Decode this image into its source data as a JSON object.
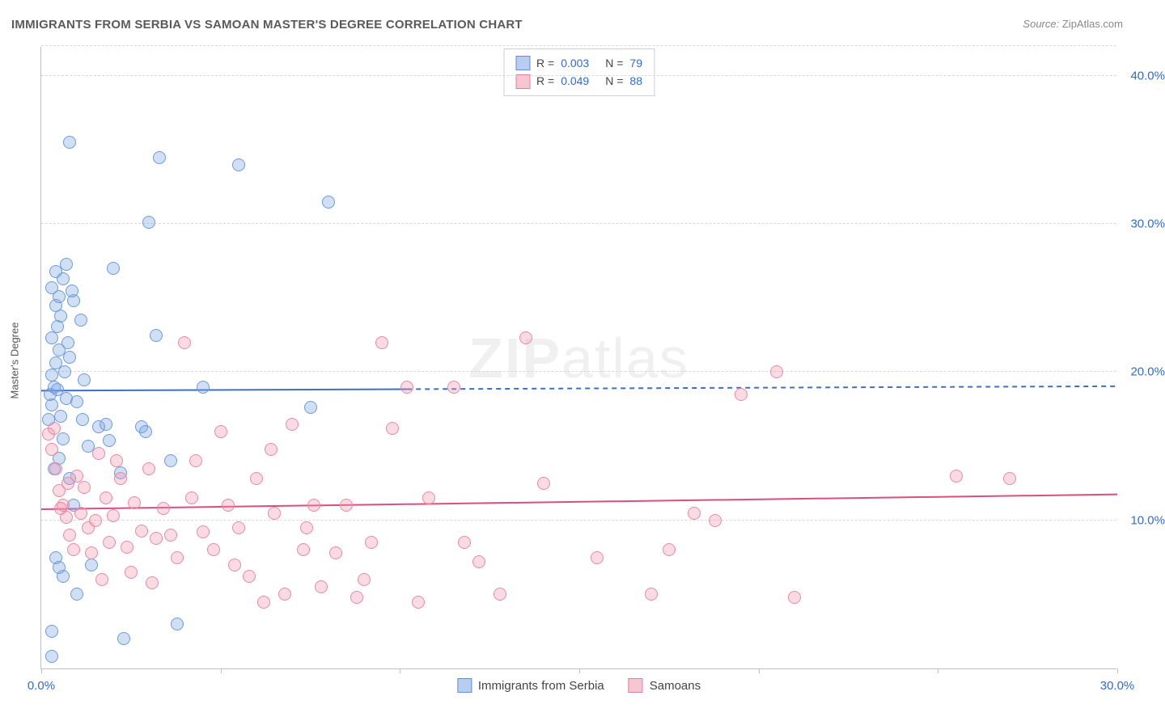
{
  "title": "IMMIGRANTS FROM SERBIA VS SAMOAN MASTER'S DEGREE CORRELATION CHART",
  "source": {
    "prefix": "Source:",
    "name": "ZipAtlas.com"
  },
  "yaxis_label": "Master's Degree",
  "watermark": {
    "bold": "ZIP",
    "light": "atlas"
  },
  "chart": {
    "type": "scatter",
    "background_color": "#ffffff",
    "grid_color": "#d9d9d9",
    "axis_color": "#bfbfbf",
    "tick_color": "#2f6bd6",
    "xlim": [
      0,
      30
    ],
    "ylim": [
      0,
      42
    ],
    "y_gridlines": [
      10,
      20,
      30,
      40,
      42
    ],
    "y_tick_labels": [
      "10.0%",
      "20.0%",
      "30.0%",
      "40.0%",
      ""
    ],
    "x_ticks": [
      0,
      5,
      10,
      15,
      20,
      25,
      30
    ],
    "x_tick_labels": [
      "0.0%",
      "",
      "",
      "",
      "",
      "",
      "30.0%"
    ],
    "marker_radius": 8,
    "marker_border_width": 1.2,
    "series": [
      {
        "name": "Immigrants from Serbia",
        "fill": "rgba(120,163,224,0.35)",
        "stroke": "#6b9be0",
        "swatch_fill": "#b8cef0",
        "swatch_stroke": "#5b8fd8",
        "R": "0.003",
        "N": "79",
        "trend": {
          "y_start": 18.8,
          "y_end": 19.1,
          "solid_until_x": 10.2,
          "color": "#3d6fc2",
          "width": 2
        },
        "points": [
          [
            0.2,
            16.8
          ],
          [
            0.3,
            17.8
          ],
          [
            0.25,
            18.5
          ],
          [
            0.35,
            19.0
          ],
          [
            0.3,
            19.8
          ],
          [
            0.4,
            20.6
          ],
          [
            0.5,
            21.5
          ],
          [
            0.3,
            22.3
          ],
          [
            0.45,
            23.1
          ],
          [
            0.55,
            23.8
          ],
          [
            0.4,
            24.5
          ],
          [
            0.5,
            25.1
          ],
          [
            0.3,
            25.7
          ],
          [
            0.6,
            26.3
          ],
          [
            0.4,
            26.8
          ],
          [
            0.7,
            27.3
          ],
          [
            0.5,
            14.2
          ],
          [
            0.6,
            15.5
          ],
          [
            0.8,
            12.8
          ],
          [
            0.9,
            11.0
          ],
          [
            0.4,
            7.5
          ],
          [
            0.6,
            6.2
          ],
          [
            0.3,
            2.5
          ],
          [
            1.0,
            5.0
          ],
          [
            1.3,
            15.0
          ],
          [
            1.4,
            7.0
          ],
          [
            1.6,
            16.3
          ],
          [
            1.8,
            16.5
          ],
          [
            1.9,
            15.4
          ],
          [
            2.0,
            27.0
          ],
          [
            2.2,
            13.2
          ],
          [
            2.3,
            2.0
          ],
          [
            2.8,
            16.3
          ],
          [
            2.9,
            16.0
          ],
          [
            3.0,
            30.1
          ],
          [
            3.2,
            22.5
          ],
          [
            3.3,
            34.5
          ],
          [
            0.8,
            35.5
          ],
          [
            3.6,
            14.0
          ],
          [
            3.8,
            3.0
          ],
          [
            4.5,
            19.0
          ],
          [
            5.5,
            34.0
          ],
          [
            7.5,
            17.6
          ],
          [
            8.0,
            31.5
          ],
          [
            0.3,
            0.8
          ],
          [
            0.7,
            18.2
          ],
          [
            0.8,
            21.0
          ],
          [
            1.1,
            23.5
          ],
          [
            1.2,
            19.5
          ],
          [
            0.9,
            24.8
          ],
          [
            0.35,
            13.5
          ],
          [
            0.55,
            17.0
          ],
          [
            0.65,
            20.0
          ],
          [
            0.75,
            22.0
          ],
          [
            0.85,
            25.5
          ],
          [
            1.0,
            18.0
          ],
          [
            1.15,
            16.8
          ],
          [
            0.45,
            18.8
          ],
          [
            0.5,
            6.8
          ]
        ]
      },
      {
        "name": "Samoans",
        "fill": "rgba(240,150,175,0.35)",
        "stroke": "#e88aa5",
        "swatch_fill": "#f6c6d3",
        "swatch_stroke": "#e37d9c",
        "R": "0.049",
        "N": "88",
        "trend": {
          "y_start": 10.8,
          "y_end": 11.8,
          "solid_until_x": 30,
          "color": "#d94f7e",
          "width": 2
        },
        "points": [
          [
            0.2,
            15.8
          ],
          [
            0.3,
            14.8
          ],
          [
            0.4,
            13.5
          ],
          [
            0.5,
            12.0
          ],
          [
            0.6,
            11.0
          ],
          [
            0.7,
            10.2
          ],
          [
            0.8,
            9.0
          ],
          [
            0.9,
            8.0
          ],
          [
            1.0,
            13.0
          ],
          [
            1.1,
            10.5
          ],
          [
            1.2,
            12.2
          ],
          [
            1.3,
            9.5
          ],
          [
            1.5,
            10.0
          ],
          [
            1.6,
            14.5
          ],
          [
            1.8,
            11.5
          ],
          [
            1.9,
            8.5
          ],
          [
            2.0,
            10.3
          ],
          [
            2.2,
            12.8
          ],
          [
            2.4,
            8.2
          ],
          [
            2.6,
            11.2
          ],
          [
            2.8,
            9.3
          ],
          [
            3.0,
            13.5
          ],
          [
            3.2,
            8.8
          ],
          [
            3.4,
            10.8
          ],
          [
            3.6,
            9.0
          ],
          [
            3.8,
            7.5
          ],
          [
            4.0,
            22.0
          ],
          [
            4.2,
            11.5
          ],
          [
            4.5,
            9.2
          ],
          [
            4.8,
            8.0
          ],
          [
            5.0,
            16.0
          ],
          [
            5.2,
            11.0
          ],
          [
            5.5,
            9.5
          ],
          [
            5.8,
            6.2
          ],
          [
            6.0,
            12.8
          ],
          [
            6.2,
            4.5
          ],
          [
            6.5,
            10.5
          ],
          [
            6.8,
            5.0
          ],
          [
            7.0,
            16.5
          ],
          [
            7.3,
            8.0
          ],
          [
            7.6,
            11.0
          ],
          [
            7.8,
            5.5
          ],
          [
            8.2,
            7.8
          ],
          [
            8.5,
            11.0
          ],
          [
            8.8,
            4.8
          ],
          [
            9.2,
            8.5
          ],
          [
            9.5,
            22.0
          ],
          [
            9.8,
            16.2
          ],
          [
            10.2,
            19.0
          ],
          [
            10.5,
            4.5
          ],
          [
            10.8,
            11.5
          ],
          [
            11.5,
            19.0
          ],
          [
            11.8,
            8.5
          ],
          [
            12.2,
            7.2
          ],
          [
            12.8,
            5.0
          ],
          [
            13.5,
            22.3
          ],
          [
            14.0,
            12.5
          ],
          [
            15.5,
            7.5
          ],
          [
            17.0,
            5.0
          ],
          [
            17.5,
            8.0
          ],
          [
            18.2,
            10.5
          ],
          [
            18.8,
            10.0
          ],
          [
            19.5,
            18.5
          ],
          [
            20.5,
            20.0
          ],
          [
            21.0,
            4.8
          ],
          [
            25.5,
            13.0
          ],
          [
            27.0,
            12.8
          ],
          [
            0.35,
            16.2
          ],
          [
            0.55,
            10.8
          ],
          [
            0.75,
            12.5
          ],
          [
            1.4,
            7.8
          ],
          [
            1.7,
            6.0
          ],
          [
            2.1,
            14.0
          ],
          [
            2.5,
            6.5
          ],
          [
            3.1,
            5.8
          ],
          [
            4.3,
            14.0
          ],
          [
            5.4,
            7.0
          ],
          [
            6.4,
            14.8
          ],
          [
            7.4,
            9.5
          ],
          [
            9.0,
            6.0
          ]
        ]
      }
    ]
  },
  "legend_bottom": [
    {
      "label": "Immigrants from Serbia",
      "series": 0
    },
    {
      "label": "Samoans",
      "series": 1
    }
  ]
}
